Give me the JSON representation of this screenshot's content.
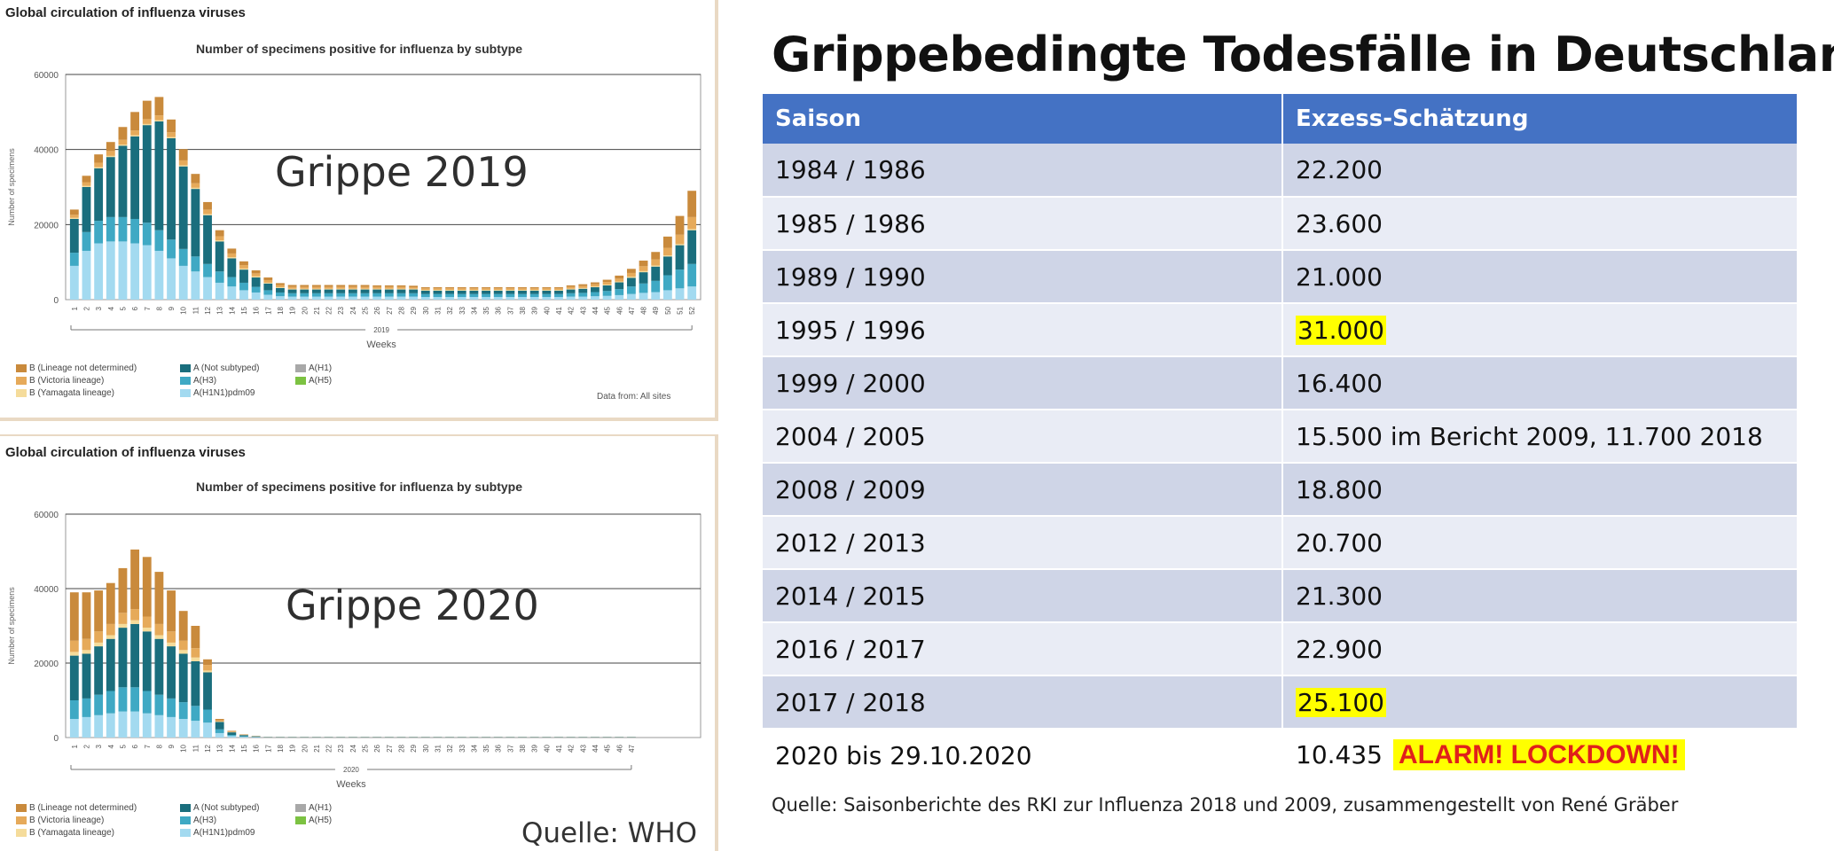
{
  "left_charts": {
    "header": "Global circulation of influenza viruses",
    "legend": [
      {
        "label": "B (Lineage not determined)",
        "color": "#c98a3c"
      },
      {
        "label": "A (Not subtyped)",
        "color": "#1a6e7d"
      },
      {
        "label": "A(H1)",
        "color": "#a8a8a8"
      },
      {
        "label": "B (Victoria lineage)",
        "color": "#e6aa5a"
      },
      {
        "label": "A(H3)",
        "color": "#3fa9c4"
      },
      {
        "label": "A(H5)",
        "color": "#7cc242"
      },
      {
        "label": "B (Yamagata lineage)",
        "color": "#f5dc9b"
      },
      {
        "label": "A(H1N1)pdm09",
        "color": "#a3daf0"
      }
    ],
    "data_from": "Data from: All sites",
    "source": "Quelle: WHO"
  },
  "chart_data": [
    {
      "type": "bar",
      "stacked": true,
      "title": "Number of specimens positive for influenza by subtype",
      "overlay_text": "Grippe 2019",
      "ylabel": "Number of specimens",
      "xlabel": "Weeks",
      "year_label": "2019",
      "ylim": [
        0,
        60000
      ],
      "yticks": [
        0,
        20000,
        40000,
        60000
      ],
      "categories": [
        "1",
        "2",
        "3",
        "4",
        "5",
        "6",
        "7",
        "8",
        "9",
        "10",
        "11",
        "12",
        "13",
        "14",
        "15",
        "16",
        "17",
        "18",
        "19",
        "20",
        "21",
        "22",
        "23",
        "24",
        "25",
        "26",
        "27",
        "28",
        "29",
        "30",
        "31",
        "32",
        "33",
        "34",
        "35",
        "36",
        "37",
        "38",
        "39",
        "40",
        "41",
        "42",
        "43",
        "44",
        "45",
        "46",
        "47",
        "48",
        "49",
        "50",
        "51",
        "52"
      ],
      "series": [
        {
          "name": "A(H1N1)pdm09",
          "color": "#a3daf0",
          "values": [
            9000,
            13000,
            15000,
            15500,
            15500,
            15000,
            14500,
            13000,
            11000,
            9000,
            7500,
            6000,
            4500,
            3500,
            2500,
            1900,
            1300,
            900,
            800,
            800,
            800,
            800,
            800,
            800,
            800,
            800,
            800,
            800,
            800,
            700,
            700,
            700,
            700,
            700,
            700,
            700,
            700,
            700,
            700,
            700,
            700,
            800,
            800,
            900,
            1000,
            1200,
            1500,
            1800,
            2000,
            2500,
            3000,
            3500
          ]
        },
        {
          "name": "A(H3)",
          "color": "#3fa9c4",
          "values": [
            3500,
            5000,
            6000,
            6500,
            6500,
            6500,
            6000,
            5500,
            5000,
            4500,
            4000,
            3500,
            3000,
            2500,
            2000,
            1500,
            1200,
            1000,
            900,
            900,
            900,
            900,
            900,
            900,
            900,
            900,
            900,
            900,
            900,
            800,
            800,
            800,
            800,
            800,
            800,
            800,
            800,
            800,
            800,
            800,
            800,
            900,
            1000,
            1100,
            1300,
            1600,
            2000,
            2500,
            3000,
            4000,
            5000,
            6000
          ]
        },
        {
          "name": "A (Not subtyped)",
          "color": "#1a6e7d",
          "values": [
            9000,
            12000,
            14000,
            16000,
            19000,
            22000,
            26000,
            29000,
            27000,
            22000,
            18000,
            13000,
            8000,
            5000,
            3500,
            2500,
            1800,
            1200,
            1000,
            1000,
            1000,
            1000,
            1000,
            1000,
            1000,
            1000,
            1000,
            1000,
            1000,
            900,
            900,
            900,
            900,
            900,
            900,
            900,
            900,
            900,
            900,
            900,
            900,
            1000,
            1100,
            1300,
            1500,
            1800,
            2300,
            3000,
            3800,
            5000,
            6500,
            9000
          ]
        },
        {
          "name": "B (Yamagata lineage)",
          "color": "#f5dc9b",
          "values": [
            300,
            300,
            300,
            300,
            300,
            300,
            300,
            300,
            300,
            300,
            300,
            300,
            300,
            300,
            300,
            300,
            200,
            200,
            200,
            200,
            200,
            200,
            200,
            200,
            200,
            200,
            200,
            200,
            200,
            200,
            200,
            200,
            200,
            200,
            200,
            200,
            200,
            200,
            200,
            200,
            200,
            200,
            200,
            200,
            200,
            200,
            300,
            300,
            300,
            300,
            300,
            300
          ]
        },
        {
          "name": "B (Victoria lineage)",
          "color": "#e6aa5a",
          "values": [
            800,
            1000,
            1200,
            1300,
            1300,
            1300,
            1300,
            1300,
            1300,
            1300,
            1200,
            1200,
            1100,
            1000,
            900,
            800,
            700,
            600,
            500,
            500,
            500,
            500,
            500,
            500,
            500,
            500,
            500,
            500,
            400,
            400,
            400,
            400,
            400,
            400,
            400,
            400,
            400,
            400,
            400,
            400,
            400,
            500,
            500,
            600,
            700,
            800,
            1000,
            1300,
            1600,
            2000,
            2500,
            3200
          ]
        },
        {
          "name": "B (Lineage not determined)",
          "color": "#c98a3c",
          "values": [
            1400,
            1700,
            2200,
            2400,
            3400,
            4900,
            4900,
            4900,
            3400,
            3000,
            2500,
            2000,
            1600,
            1300,
            1000,
            800,
            700,
            500,
            500,
            500,
            500,
            500,
            500,
            500,
            500,
            400,
            400,
            400,
            400,
            300,
            300,
            300,
            300,
            300,
            300,
            300,
            300,
            300,
            300,
            300,
            300,
            400,
            500,
            500,
            600,
            800,
            1100,
            1500,
            2000,
            3000,
            5000,
            7000
          ]
        }
      ]
    },
    {
      "type": "bar",
      "stacked": true,
      "title": "Number of specimens positive for influenza by subtype",
      "overlay_text": "Grippe 2020",
      "ylabel": "Number of specimens",
      "xlabel": "Weeks",
      "year_label": "2020",
      "ylim": [
        0,
        60000
      ],
      "yticks": [
        0,
        20000,
        40000,
        60000
      ],
      "categories": [
        "1",
        "2",
        "3",
        "4",
        "5",
        "6",
        "7",
        "8",
        "9",
        "10",
        "11",
        "12",
        "13",
        "14",
        "15",
        "16",
        "17",
        "18",
        "19",
        "20",
        "21",
        "22",
        "23",
        "24",
        "25",
        "26",
        "27",
        "28",
        "29",
        "30",
        "31",
        "32",
        "33",
        "34",
        "35",
        "36",
        "37",
        "38",
        "39",
        "40",
        "41",
        "42",
        "43",
        "44",
        "45",
        "46",
        "47"
      ],
      "series": [
        {
          "name": "A(H1N1)pdm09",
          "color": "#a3daf0",
          "values": [
            5000,
            5500,
            6000,
            6500,
            7000,
            7000,
            6500,
            6000,
            5500,
            5000,
            4500,
            4000,
            1200,
            400,
            200,
            100,
            50,
            50,
            50,
            50,
            50,
            50,
            50,
            50,
            50,
            50,
            50,
            50,
            50,
            50,
            50,
            50,
            50,
            50,
            50,
            50,
            50,
            50,
            50,
            50,
            50,
            50,
            50,
            50,
            50,
            50,
            50
          ]
        },
        {
          "name": "A(H3)",
          "color": "#3fa9c4",
          "values": [
            5000,
            5000,
            5500,
            6000,
            6500,
            6500,
            6000,
            5500,
            5000,
            4500,
            4000,
            3500,
            1000,
            300,
            150,
            80,
            40,
            40,
            40,
            40,
            40,
            40,
            40,
            40,
            40,
            40,
            40,
            40,
            40,
            40,
            40,
            40,
            40,
            40,
            40,
            40,
            40,
            40,
            40,
            40,
            40,
            40,
            40,
            40,
            40,
            40,
            40
          ]
        },
        {
          "name": "A (Not subtyped)",
          "color": "#1a6e7d",
          "values": [
            12000,
            12000,
            13000,
            14000,
            16000,
            17000,
            16000,
            15000,
            14000,
            13000,
            12000,
            10000,
            2000,
            700,
            300,
            150,
            60,
            60,
            60,
            60,
            60,
            60,
            60,
            60,
            60,
            60,
            60,
            60,
            60,
            60,
            60,
            60,
            60,
            60,
            60,
            60,
            60,
            60,
            60,
            60,
            60,
            60,
            60,
            60,
            60,
            60,
            60
          ]
        },
        {
          "name": "B (Yamagata lineage)",
          "color": "#f5dc9b",
          "values": [
            1000,
            1000,
            1000,
            1000,
            1000,
            1000,
            1000,
            1000,
            1000,
            1000,
            1000,
            500,
            100,
            50,
            30,
            20,
            10,
            10,
            10,
            10,
            10,
            10,
            10,
            10,
            10,
            10,
            10,
            10,
            10,
            10,
            10,
            10,
            10,
            10,
            10,
            10,
            10,
            10,
            10,
            10,
            10,
            10,
            10,
            10,
            10,
            10,
            10
          ]
        },
        {
          "name": "B (Victoria lineage)",
          "color": "#e6aa5a",
          "values": [
            3000,
            3000,
            3000,
            3000,
            3000,
            3000,
            3000,
            3000,
            3000,
            2500,
            2500,
            1500,
            300,
            150,
            80,
            40,
            20,
            20,
            20,
            20,
            20,
            20,
            20,
            20,
            20,
            20,
            20,
            20,
            20,
            20,
            20,
            20,
            20,
            20,
            20,
            20,
            20,
            20,
            20,
            20,
            20,
            20,
            20,
            20,
            20,
            20,
            20
          ]
        },
        {
          "name": "B (Lineage not determined)",
          "color": "#c98a3c",
          "values": [
            13000,
            12500,
            11000,
            11000,
            12000,
            16000,
            16000,
            14000,
            11000,
            8000,
            6000,
            1500,
            400,
            200,
            100,
            60,
            30,
            30,
            30,
            30,
            30,
            30,
            30,
            30,
            30,
            30,
            30,
            30,
            30,
            30,
            30,
            30,
            30,
            30,
            30,
            30,
            30,
            30,
            30,
            30,
            30,
            30,
            30,
            30,
            30,
            30,
            30
          ]
        }
      ]
    }
  ],
  "table": {
    "title": "Grippebedingte Todesfälle in Deutschland",
    "header_color": "#4472c4",
    "highlight_color": "#ffff00",
    "columns": [
      "Saison",
      "Exzess-Schätzung"
    ],
    "rows": [
      {
        "saison": "1984 / 1986",
        "estimate": "22.200"
      },
      {
        "saison": "1985 / 1986",
        "estimate": "23.600"
      },
      {
        "saison": "1989 / 1990",
        "estimate": "21.000"
      },
      {
        "saison": "1995 / 1996",
        "estimate": "31.000",
        "highlight": true
      },
      {
        "saison": "1999 / 2000",
        "estimate": "16.400"
      },
      {
        "saison": "2004 / 2005",
        "estimate": "15.500 im Bericht 2009, 11.700 2018"
      },
      {
        "saison": "2008 / 2009",
        "estimate": "18.800"
      },
      {
        "saison": "2012 / 2013",
        "estimate": "20.700"
      },
      {
        "saison": "2014 / 2015",
        "estimate": "21.300"
      },
      {
        "saison": "2016 / 2017",
        "estimate": "22.900"
      },
      {
        "saison": "2017 / 2018",
        "estimate": "25.100",
        "highlight": true
      },
      {
        "saison": "2020 bis 29.10.2020",
        "estimate": "10.435",
        "alarm": "ALARM! LOCKDOWN!"
      }
    ],
    "footnote": "Quelle: Saisonberichte des RKI zur Influenza 2018 und 2009, zusammengestellt von René Gräber"
  }
}
